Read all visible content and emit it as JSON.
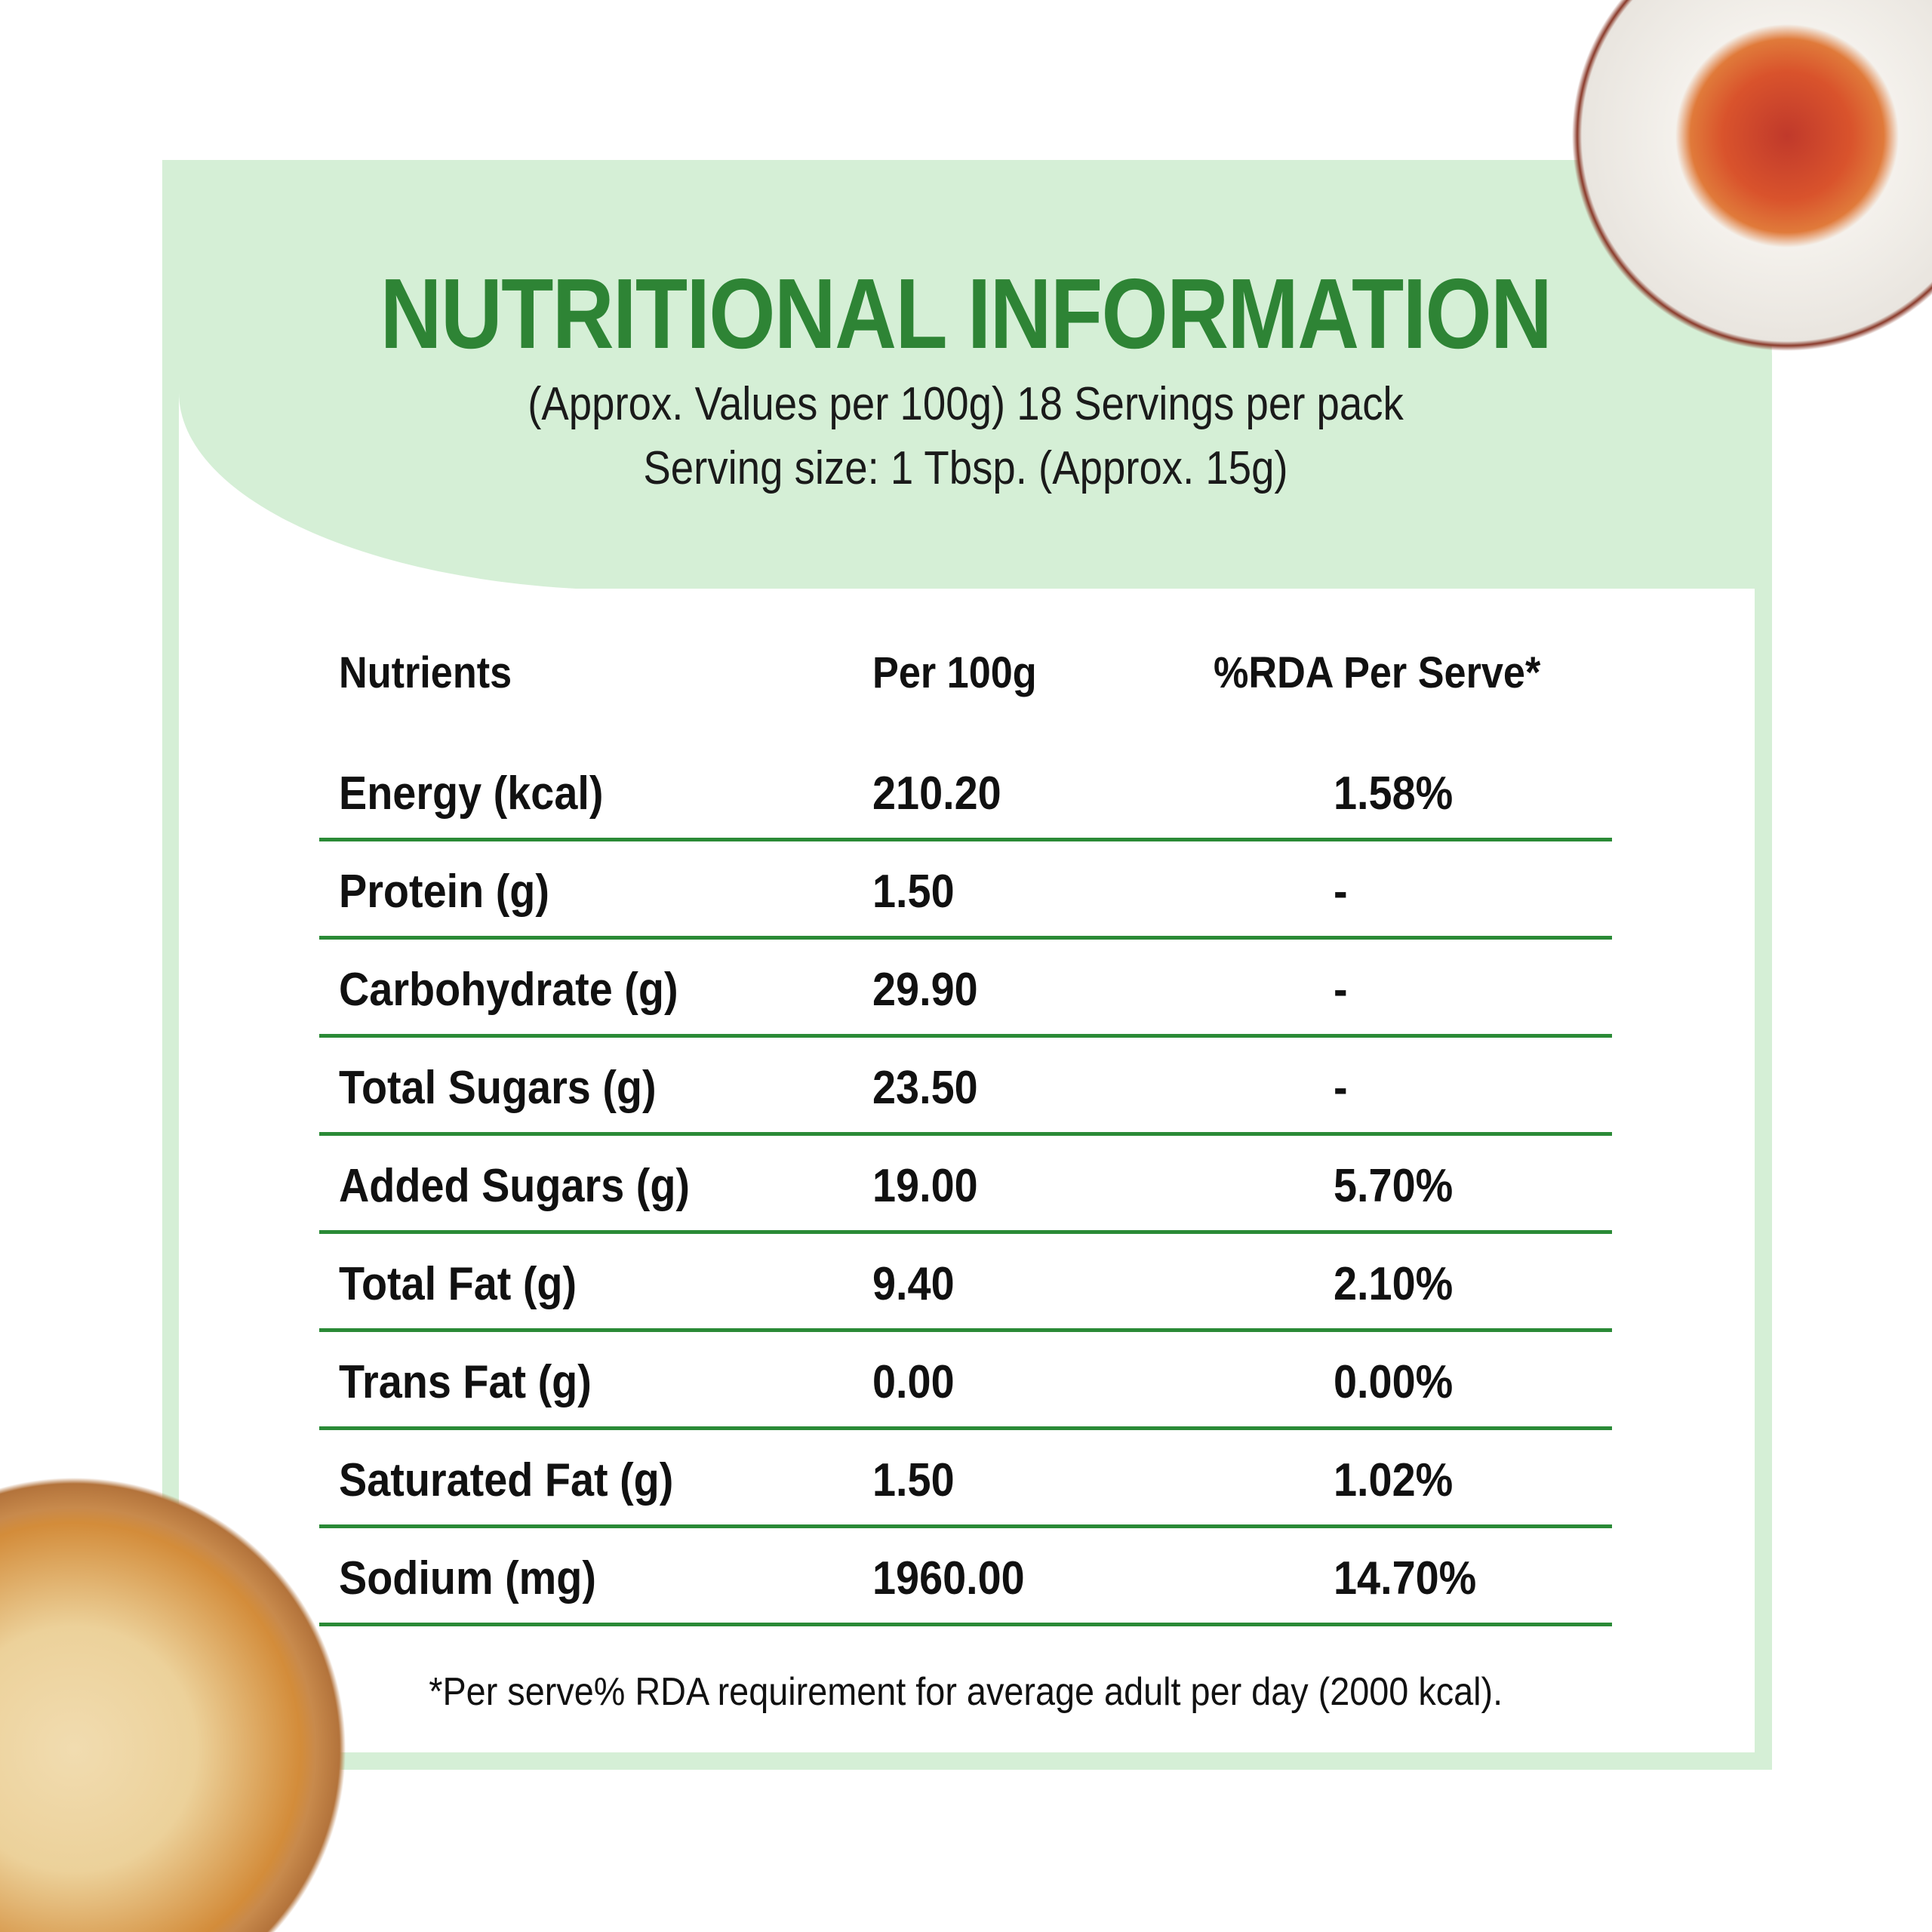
{
  "header": {
    "title": "NUTRITIONAL INFORMATION",
    "subtitle_line1": "(Approx. Values per 100g) 18 Servings per pack",
    "subtitle_line2": "Serving size: 1 Tbsp. (Approx. 15g)"
  },
  "table": {
    "columns": [
      "Nutrients",
      "Per 100g",
      "%RDA Per Serve*"
    ],
    "rows": [
      {
        "nutrient": "Energy (kcal)",
        "per100g": "210.20",
        "rda": "1.58%"
      },
      {
        "nutrient": "Protein (g)",
        "per100g": "1.50",
        "rda": "-"
      },
      {
        "nutrient": "Carbohydrate (g)",
        "per100g": "29.90",
        "rda": "-"
      },
      {
        "nutrient": "Total Sugars (g)",
        "per100g": "23.50",
        "rda": "-"
      },
      {
        "nutrient": "Added Sugars (g)",
        "per100g": "19.00",
        "rda": "5.70%"
      },
      {
        "nutrient": "Total Fat (g)",
        "per100g": "9.40",
        "rda": "2.10%"
      },
      {
        "nutrient": "Trans Fat (g)",
        "per100g": "0.00",
        "rda": "0.00%"
      },
      {
        "nutrient": "Saturated Fat (g)",
        "per100g": "1.50",
        "rda": "1.02%"
      },
      {
        "nutrient": "Sodium (mg)",
        "per100g": "1960.00",
        "rda": "14.70%"
      }
    ]
  },
  "footnote": "*Per serve% RDA requirement for average adult per day (2000 kcal).",
  "colors": {
    "panel": "#d5efd6",
    "title": "#2e8435",
    "divider": "#2a8a36"
  },
  "images": [
    "pasta-plate",
    "pizza"
  ]
}
